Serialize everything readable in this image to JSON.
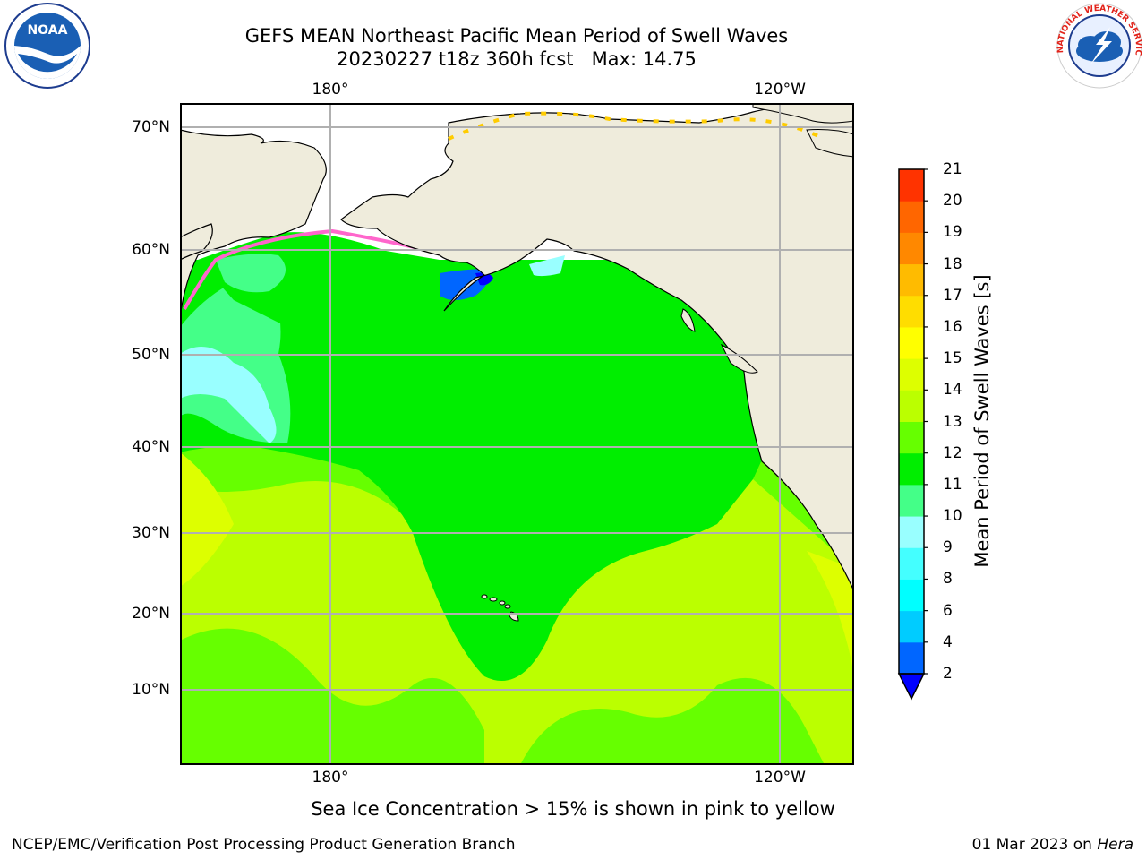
{
  "title": {
    "line1": "GEFS MEAN Northeast Pacific Mean Period of Swell Waves",
    "line2": "20230227 t18z 360h fcst   Max: 14.75"
  },
  "axes": {
    "lon_top": [
      "180°",
      "120°W"
    ],
    "lon_bottom": [
      "180°",
      "120°W"
    ],
    "lat": [
      "70°N",
      "60°N",
      "50°N",
      "40°N",
      "30°N",
      "20°N",
      "10°N"
    ]
  },
  "colorbar": {
    "label": "Mean Period of Swell Waves [s]",
    "ticks": [
      "2",
      "4",
      "6",
      "8",
      "9",
      "10",
      "11",
      "12",
      "13",
      "14",
      "15",
      "16",
      "17",
      "18",
      "19",
      "20",
      "21"
    ],
    "colors": [
      "#0066ff",
      "#00ccff",
      "#00ffff",
      "#44ffff",
      "#99ffff",
      "#44ff88",
      "#00ee00",
      "#66ff00",
      "#bbff00",
      "#ddff00",
      "#ffff00",
      "#ffdd00",
      "#ffbb00",
      "#ff8800",
      "#ff6600",
      "#ff3300",
      "#ff0000"
    ],
    "extend_color": "#0000ff"
  },
  "caption": "Sea Ice Concentration > 15% is shown in pink to yellow",
  "footer": {
    "left": "NCEP/EMC/Verification Post Processing Product Generation Branch",
    "right_prefix": "01 Mar 2023 on",
    "right_host": "Hera"
  },
  "logos": {
    "left": "NOAA",
    "right": "NATIONAL WEATHER SERVICE"
  },
  "map_colors": {
    "land": "#efecdc",
    "ice_free": "#ffffff",
    "grid": "#b0b0b0",
    "swell_low_north": "#00ee00",
    "swell_south": "#bbff00"
  }
}
